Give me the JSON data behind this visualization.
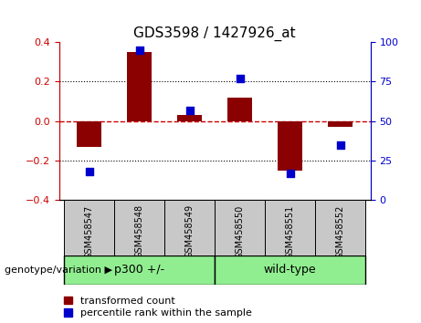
{
  "title": "GDS3598 / 1427926_at",
  "categories": [
    "GSM458547",
    "GSM458548",
    "GSM458549",
    "GSM458550",
    "GSM458551",
    "GSM458552"
  ],
  "red_bars": [
    -0.13,
    0.35,
    0.03,
    0.12,
    -0.25,
    -0.03
  ],
  "blue_squares_pct": [
    18,
    95,
    57,
    77,
    17,
    35
  ],
  "ylim_left": [
    -0.4,
    0.4
  ],
  "ylim_right": [
    0,
    100
  ],
  "yticks_left": [
    -0.4,
    -0.2,
    0,
    0.2,
    0.4
  ],
  "yticks_right": [
    0,
    25,
    50,
    75,
    100
  ],
  "groups": [
    {
      "label": "p300 +/-",
      "indices": [
        0,
        1,
        2
      ],
      "color": "#90EE90"
    },
    {
      "label": "wild-type",
      "indices": [
        3,
        4,
        5
      ],
      "color": "#90EE90"
    }
  ],
  "bar_color": "#8B0000",
  "bar_width": 0.5,
  "square_color": "#0000CD",
  "square_size": 40,
  "zero_line_color": "#CC0000",
  "zero_line_style": "--",
  "dotted_line_color": "black",
  "dotted_line_style": ":",
  "dotted_lines_at": [
    -0.2,
    0.2
  ],
  "bg_color": "white",
  "plot_bg": "white",
  "genotype_label": "genotype/variation",
  "legend_red": "transformed count",
  "legend_blue": "percentile rank within the sample",
  "sample_area_color": "#C8C8C8",
  "title_fontsize": 11,
  "axis_fontsize": 9,
  "tick_fontsize": 8,
  "label_fontsize": 8,
  "left_axis_color": "#CC0000",
  "right_axis_color": "#0000CD"
}
